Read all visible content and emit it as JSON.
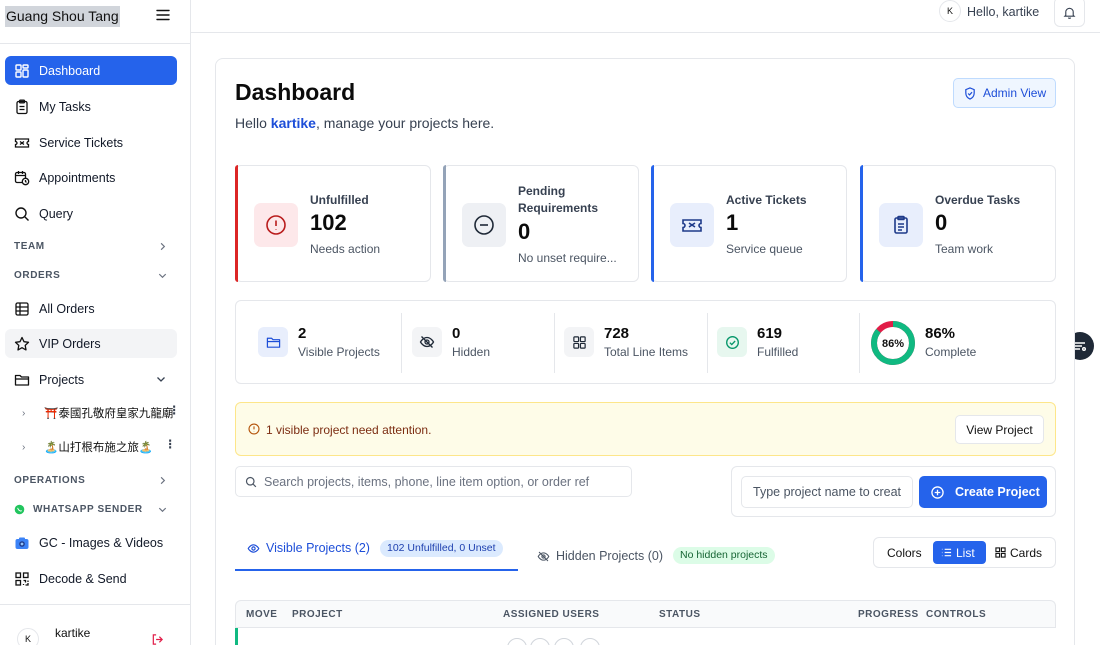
{
  "app": {
    "name": "Guang Shou Tang"
  },
  "sidebar": {
    "items": [
      {
        "label": "Dashboard"
      },
      {
        "label": "My Tasks"
      },
      {
        "label": "Service Tickets"
      },
      {
        "label": "Appointments"
      },
      {
        "label": "Query"
      }
    ],
    "sections": {
      "team": "TEAM",
      "orders": "ORDERS",
      "operations": "OPERATIONS",
      "whatsapp": "WHATSAPP SENDER"
    },
    "orders": [
      {
        "label": "All Orders"
      },
      {
        "label": "VIP Orders"
      }
    ],
    "projects": {
      "label": "Projects",
      "children": [
        "⛩️泰國孔敬府皇家九龍廟",
        "🏝️山打根布施之旅🏝️"
      ]
    },
    "whatsapp": [
      {
        "label": "GC - Images & Videos"
      },
      {
        "label": "Decode & Send"
      }
    ],
    "user": {
      "initial": "K",
      "name": "kartike"
    }
  },
  "topbar": {
    "avatar": "K",
    "greeting": "Hello, kartike"
  },
  "main": {
    "title": "Dashboard",
    "greet_prefix": "Hello ",
    "greet_name": "kartike",
    "greet_suffix": ", manage your projects here.",
    "admin_label": "Admin View"
  },
  "stats": [
    {
      "label": "Unfulfilled",
      "value": "102",
      "note": "Needs action",
      "color": "#dc2626"
    },
    {
      "label": "Pending Requirements",
      "value": "0",
      "note": "No unset require...",
      "color": "#94a3b8"
    },
    {
      "label": "Active Tickets",
      "value": "1",
      "note": "Service queue",
      "color": "#2563eb"
    },
    {
      "label": "Overdue Tasks",
      "value": "0",
      "note": "Team work",
      "color": "#2563eb"
    }
  ],
  "summary": [
    {
      "value": "2",
      "label": "Visible Projects"
    },
    {
      "value": "0",
      "label": "Hidden"
    },
    {
      "value": "728",
      "label": "Total Line Items"
    },
    {
      "value": "619",
      "label": "Fulfilled"
    },
    {
      "value": "86%",
      "label": "Complete",
      "ring_text": "86%",
      "progress": 0.86
    }
  ],
  "alert": {
    "message": "1 visible project need attention.",
    "button": "View Project"
  },
  "search": {
    "placeholder": "Search projects, items, phone, line item option, or order ref"
  },
  "create": {
    "placeholder": "Type project name to creat",
    "button": "Create Project"
  },
  "tabs": {
    "visible": "Visible Projects (2)",
    "visible_badge": "102 Unfulfilled, 0 Unset",
    "hidden": "Hidden Projects (0)",
    "hidden_badge": "No hidden projects"
  },
  "view_toggle": {
    "colors": "Colors",
    "list": "List",
    "cards": "Cards",
    "selected": "List"
  },
  "table": {
    "headers": [
      "MOVE",
      "PROJECT",
      "ASSIGNED USERS",
      "STATUS",
      "PROGRESS",
      "CONTROLS"
    ]
  }
}
